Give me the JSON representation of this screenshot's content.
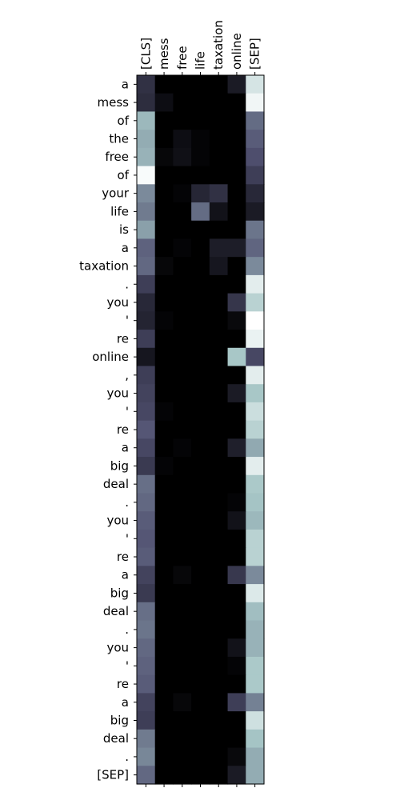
{
  "chart_data": {
    "type": "heatmap",
    "title": "",
    "xlabel": "",
    "ylabel": "",
    "colormap": "bone",
    "value_range": [
      0,
      1
    ],
    "grid": false,
    "x_labels": [
      "[CLS]",
      "mess",
      "free",
      "life",
      "taxation",
      "online",
      "[SEP]"
    ],
    "y_labels": [
      "a",
      "mess",
      "of",
      "the",
      "free",
      "of",
      "your",
      "life",
      "is",
      "a",
      "taxation",
      ".",
      "you",
      "'",
      "re",
      "online",
      ",",
      "you",
      "'",
      "re",
      "a",
      "big",
      "deal",
      ".",
      "you",
      "'",
      "re",
      "a",
      "big",
      "deal",
      ".",
      "you",
      "'",
      "re",
      "a",
      "big",
      "deal",
      ".",
      "[SEP]"
    ],
    "values": [
      [
        0.22,
        0.0,
        0.0,
        0.0,
        0.0,
        0.12,
        0.88
      ],
      [
        0.2,
        0.06,
        0.0,
        0.0,
        0.0,
        0.0,
        0.96
      ],
      [
        0.7,
        0.0,
        0.0,
        0.0,
        0.0,
        0.0,
        0.45
      ],
      [
        0.66,
        0.0,
        0.06,
        0.02,
        0.0,
        0.0,
        0.4
      ],
      [
        0.68,
        0.03,
        0.07,
        0.02,
        0.0,
        0.0,
        0.35
      ],
      [
        0.98,
        0.0,
        0.0,
        0.0,
        0.0,
        0.0,
        0.28
      ],
      [
        0.55,
        0.0,
        0.02,
        0.17,
        0.22,
        0.0,
        0.18
      ],
      [
        0.5,
        0.0,
        0.0,
        0.45,
        0.08,
        0.0,
        0.12
      ],
      [
        0.62,
        0.0,
        0.0,
        0.0,
        0.0,
        0.0,
        0.48
      ],
      [
        0.42,
        0.0,
        0.02,
        0.0,
        0.13,
        0.13,
        0.43
      ],
      [
        0.44,
        0.03,
        0.0,
        0.0,
        0.1,
        0.0,
        0.55
      ],
      [
        0.28,
        0.0,
        0.0,
        0.0,
        0.0,
        0.0,
        0.92
      ],
      [
        0.18,
        0.0,
        0.0,
        0.0,
        0.0,
        0.24,
        0.8
      ],
      [
        0.16,
        0.02,
        0.0,
        0.0,
        0.0,
        0.04,
        1.0
      ],
      [
        0.28,
        0.0,
        0.0,
        0.0,
        0.0,
        0.0,
        0.94
      ],
      [
        0.1,
        0.0,
        0.0,
        0.0,
        0.0,
        0.75,
        0.32
      ],
      [
        0.28,
        0.0,
        0.0,
        0.0,
        0.0,
        0.0,
        0.92
      ],
      [
        0.3,
        0.0,
        0.0,
        0.0,
        0.0,
        0.12,
        0.75
      ],
      [
        0.32,
        0.02,
        0.0,
        0.0,
        0.0,
        0.0,
        0.85
      ],
      [
        0.38,
        0.0,
        0.0,
        0.0,
        0.0,
        0.0,
        0.8
      ],
      [
        0.32,
        0.0,
        0.02,
        0.0,
        0.0,
        0.14,
        0.65
      ],
      [
        0.26,
        0.02,
        0.0,
        0.0,
        0.0,
        0.0,
        0.92
      ],
      [
        0.46,
        0.0,
        0.0,
        0.0,
        0.0,
        0.0,
        0.76
      ],
      [
        0.44,
        0.0,
        0.0,
        0.0,
        0.0,
        0.02,
        0.74
      ],
      [
        0.4,
        0.0,
        0.0,
        0.0,
        0.0,
        0.08,
        0.7
      ],
      [
        0.38,
        0.0,
        0.0,
        0.0,
        0.0,
        0.0,
        0.8
      ],
      [
        0.4,
        0.0,
        0.0,
        0.0,
        0.0,
        0.0,
        0.8
      ],
      [
        0.3,
        0.0,
        0.03,
        0.0,
        0.0,
        0.25,
        0.55
      ],
      [
        0.26,
        0.0,
        0.0,
        0.0,
        0.0,
        0.0,
        0.9
      ],
      [
        0.46,
        0.0,
        0.0,
        0.0,
        0.0,
        0.0,
        0.72
      ],
      [
        0.48,
        0.0,
        0.0,
        0.0,
        0.0,
        0.0,
        0.68
      ],
      [
        0.44,
        0.0,
        0.0,
        0.0,
        0.0,
        0.08,
        0.68
      ],
      [
        0.42,
        0.0,
        0.0,
        0.0,
        0.0,
        0.02,
        0.76
      ],
      [
        0.4,
        0.0,
        0.0,
        0.0,
        0.0,
        0.0,
        0.76
      ],
      [
        0.3,
        0.0,
        0.03,
        0.0,
        0.0,
        0.28,
        0.52
      ],
      [
        0.28,
        0.0,
        0.0,
        0.0,
        0.0,
        0.0,
        0.86
      ],
      [
        0.5,
        0.0,
        0.0,
        0.0,
        0.0,
        0.0,
        0.74
      ],
      [
        0.54,
        0.0,
        0.0,
        0.0,
        0.0,
        0.04,
        0.66
      ],
      [
        0.44,
        0.0,
        0.0,
        0.0,
        0.0,
        0.12,
        0.66
      ]
    ]
  }
}
